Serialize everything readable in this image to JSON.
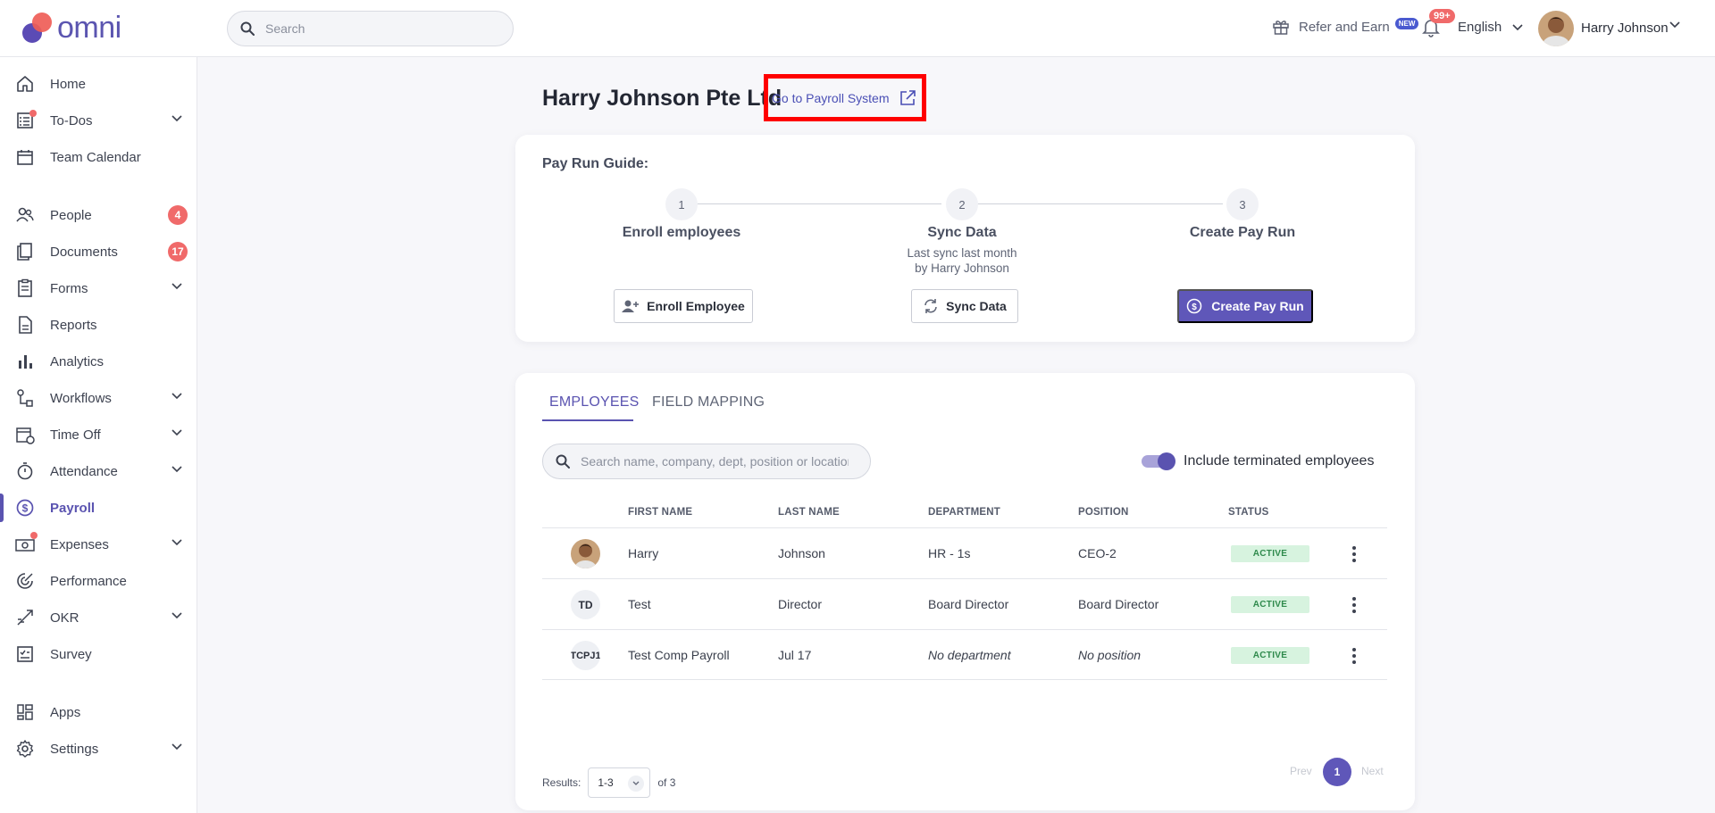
{
  "brand": {
    "name": "omni"
  },
  "header": {
    "search_placeholder": "Search",
    "refer_label": "Refer and Earn",
    "refer_badge": "NEW",
    "notifications_count": "99+",
    "language": "English",
    "user_name": "Harry Johnson"
  },
  "sidebar": {
    "items": [
      {
        "label": "Home",
        "icon": "home-icon"
      },
      {
        "label": "To-Dos",
        "icon": "todo-list-icon"
      },
      {
        "label": "Team Calendar",
        "icon": "calendar-icon"
      },
      {
        "label": "People",
        "icon": "people-icon",
        "count": "4"
      },
      {
        "label": "Documents",
        "icon": "documents-icon",
        "count": "17"
      },
      {
        "label": "Forms",
        "icon": "forms-icon"
      },
      {
        "label": "Reports",
        "icon": "report-icon"
      },
      {
        "label": "Analytics",
        "icon": "analytics-icon"
      },
      {
        "label": "Workflows",
        "icon": "workflow-icon"
      },
      {
        "label": "Time Off",
        "icon": "time-off-icon"
      },
      {
        "label": "Attendance",
        "icon": "stopwatch-icon"
      },
      {
        "label": "Payroll",
        "icon": "dollar-icon"
      },
      {
        "label": "Expenses",
        "icon": "expenses-icon"
      },
      {
        "label": "Performance",
        "icon": "performance-icon"
      },
      {
        "label": "OKR",
        "icon": "okr-icon"
      },
      {
        "label": "Survey",
        "icon": "survey-icon"
      },
      {
        "label": "Apps",
        "icon": "apps-icon"
      },
      {
        "label": "Settings",
        "icon": "gear-icon"
      }
    ]
  },
  "page": {
    "title": "Harry Johnson Pte Ltd",
    "payroll_link": "Go to Payroll System"
  },
  "guide": {
    "title": "Pay Run Guide:",
    "steps": [
      {
        "number": "1",
        "title": "Enroll employees",
        "subtitle": "",
        "button": "Enroll Employee"
      },
      {
        "number": "2",
        "title": "Sync Data",
        "subtitle_line1": "Last sync last month",
        "subtitle_line2": "by Harry Johnson",
        "button": "Sync Data"
      },
      {
        "number": "3",
        "title": "Create Pay Run",
        "subtitle": "",
        "button": "Create Pay Run"
      }
    ],
    "accent_color": "#5f57b9"
  },
  "employees": {
    "tabs": [
      "EMPLOYEES",
      "FIELD MAPPING"
    ],
    "search_placeholder": "Search name, company, dept, position or location",
    "toggle_label": "Include terminated employees",
    "toggle_on": true,
    "columns": [
      "FIRST NAME",
      "LAST NAME",
      "DEPARTMENT",
      "POSITION",
      "STATUS"
    ],
    "rows": [
      {
        "initials": "",
        "first_name": "Harry",
        "last_name": "Johnson",
        "department": "HR - 1s",
        "position": "CEO-2",
        "status": "ACTIVE"
      },
      {
        "initials": "TD",
        "first_name": "Test",
        "last_name": "Director",
        "department": "Board Director",
        "position": "Board Director",
        "status": "ACTIVE"
      },
      {
        "initials": "TCPJ1",
        "first_name": "Test Comp Payroll",
        "last_name": "Jul 17",
        "department": "No department",
        "position": "No position",
        "status": "ACTIVE"
      }
    ],
    "results_label": "Results:",
    "results_range": "1-3",
    "results_total": "of 3",
    "pager_prev": "Prev",
    "pager_page": "1",
    "pager_next": "Next"
  }
}
